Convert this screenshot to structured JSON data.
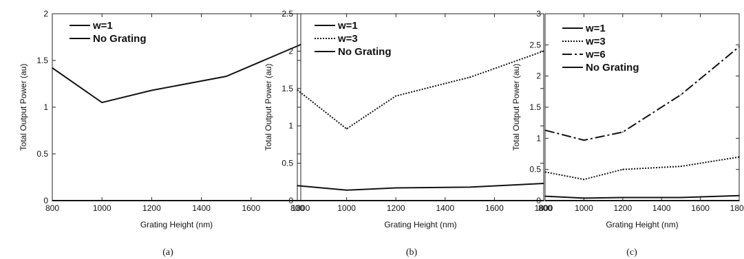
{
  "chart_data": [
    {
      "type": "line",
      "xlabel": "Grating Height (nm)",
      "ylabel": "Total Output Power (au)",
      "caption": "(a)",
      "xlim": [
        800,
        1800
      ],
      "ylim": [
        0,
        2
      ],
      "xticks": [
        "800",
        "1000",
        "1200",
        "1400",
        "1600",
        "1800"
      ],
      "yticks": [
        "0",
        "0.5",
        "1",
        "1.5",
        "2"
      ],
      "grid": false,
      "legend_position": "top-left",
      "x": [
        800,
        1000,
        1200,
        1500,
        1800
      ],
      "series": [
        {
          "name": "w=1",
          "values": [
            1.42,
            1.05,
            1.18,
            1.33,
            1.67
          ],
          "dash": "solid"
        },
        {
          "name": "No Grating",
          "values": [
            0,
            0,
            0,
            0,
            0
          ],
          "dash": "solid"
        }
      ]
    },
    {
      "type": "line",
      "xlabel": "Grating Height (nm)",
      "ylabel": "Total Output Power (au)",
      "caption": "(b)",
      "xlim": [
        800,
        1800
      ],
      "ylim": [
        0,
        2.5
      ],
      "xticks": [
        "800",
        "1000",
        "1200",
        "1400",
        "1600",
        "1800"
      ],
      "yticks": [
        "0",
        "0.5",
        "1",
        "1.5",
        "2",
        "2.5"
      ],
      "grid": false,
      "legend_position": "top-left",
      "x": [
        800,
        1000,
        1200,
        1500,
        1800
      ],
      "series": [
        {
          "name": "w=1",
          "values": [
            0.2,
            0.14,
            0.17,
            0.18,
            0.23
          ],
          "dash": "solid"
        },
        {
          "name": "w=3",
          "values": [
            1.48,
            0.96,
            1.4,
            1.65,
            2.0
          ],
          "dash": "dotted"
        },
        {
          "name": "No Grating",
          "values": [
            0,
            0,
            0,
            0,
            0
          ],
          "dash": "solid"
        }
      ]
    },
    {
      "type": "line",
      "xlabel": "Grating Height (nm)",
      "ylabel": "Total Output Power (au)",
      "caption": "(c)",
      "xlim": [
        800,
        1800
      ],
      "ylim": [
        0,
        3
      ],
      "xticks": [
        "800",
        "1000",
        "1200",
        "1400",
        "1600",
        "1800"
      ],
      "yticks": [
        "0",
        "0.5",
        "1",
        "1.5",
        "2",
        "2.5",
        "3"
      ],
      "grid": false,
      "legend_position": "top-left",
      "x": [
        800,
        1000,
        1200,
        1500,
        1800
      ],
      "series": [
        {
          "name": "w=1",
          "values": [
            0.07,
            0.04,
            0.05,
            0.05,
            0.08
          ],
          "dash": "solid"
        },
        {
          "name": "w=3",
          "values": [
            0.46,
            0.34,
            0.5,
            0.55,
            0.7
          ],
          "dash": "dotted"
        },
        {
          "name": "w=6",
          "values": [
            1.13,
            0.97,
            1.1,
            1.7,
            2.47
          ],
          "dash": "dashdot"
        },
        {
          "name": "No Grating",
          "values": [
            0,
            0,
            0,
            0,
            0
          ],
          "dash": "solid"
        }
      ]
    }
  ]
}
